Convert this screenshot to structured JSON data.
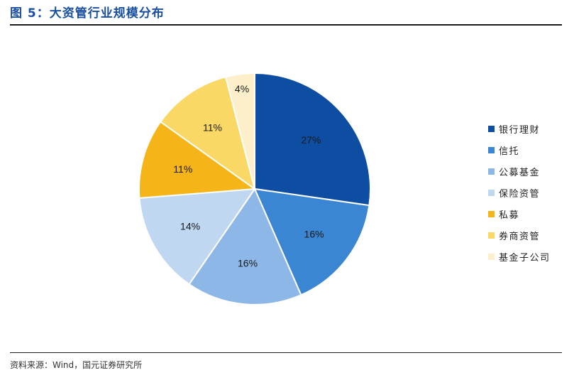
{
  "header": {
    "title": "图 5：大资管行业规模分布"
  },
  "footer": {
    "source": "资料来源：Wind，国元证券研究所"
  },
  "chart_data": {
    "type": "pie",
    "title": "",
    "labels": [
      "银行理财",
      "信托",
      "公募基金",
      "保险资管",
      "私募",
      "券商资管",
      "基金子公司"
    ],
    "values": [
      27,
      16,
      16,
      14,
      11,
      11,
      4
    ],
    "data_labels": [
      "27%",
      "16%",
      "16%",
      "14%",
      "11%",
      "11%",
      "4%"
    ],
    "colors": [
      "#0d4ea3",
      "#3a86d2",
      "#8db7e6",
      "#bfd7f0",
      "#f5b417",
      "#fad866",
      "#fdefc9"
    ],
    "legend_position": "right"
  }
}
